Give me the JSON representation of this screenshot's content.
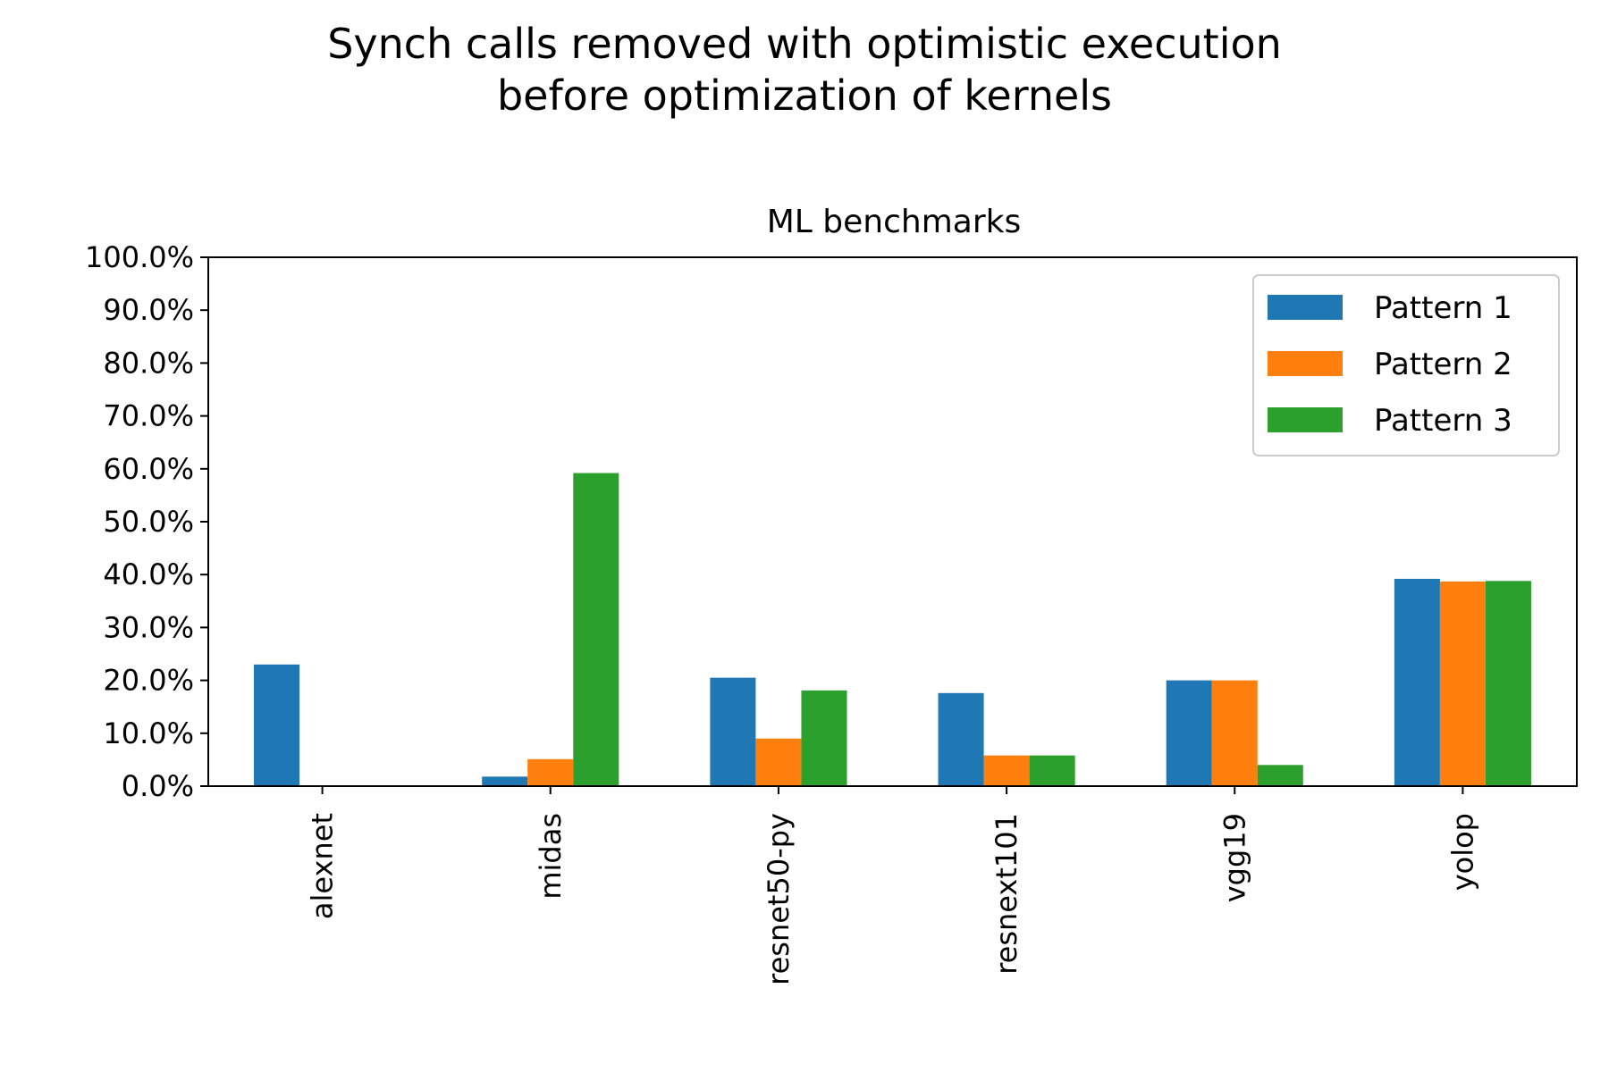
{
  "figure": {
    "suptitle_line1": "Synch calls removed with optimistic execution",
    "suptitle_line2": "before optimization of kernels"
  },
  "chart_data": {
    "type": "bar",
    "title": "ML benchmarks",
    "xlabel": "",
    "ylabel": "",
    "categories": [
      "alexnet",
      "midas",
      "resnet50-py",
      "resnext101",
      "vgg19",
      "yolop"
    ],
    "series": [
      {
        "name": "Pattern 1",
        "color": "#1f77b4",
        "values": [
          23.0,
          1.8,
          20.5,
          17.6,
          20.0,
          39.2
        ]
      },
      {
        "name": "Pattern 2",
        "color": "#ff7f0e",
        "values": [
          0.0,
          5.1,
          9.0,
          5.8,
          20.0,
          38.7
        ]
      },
      {
        "name": "Pattern 3",
        "color": "#2ca02c",
        "values": [
          0.0,
          59.2,
          18.1,
          5.8,
          4.0,
          38.8
        ]
      }
    ],
    "ylim": [
      0,
      100
    ],
    "yticks": [
      0,
      10,
      20,
      30,
      40,
      50,
      60,
      70,
      80,
      90,
      100
    ],
    "ytick_labels": [
      "0.0%",
      "10.0%",
      "20.0%",
      "30.0%",
      "40.0%",
      "50.0%",
      "60.0%",
      "70.0%",
      "80.0%",
      "90.0%",
      "100.0%"
    ],
    "grid": false,
    "legend_position": "top-right"
  }
}
